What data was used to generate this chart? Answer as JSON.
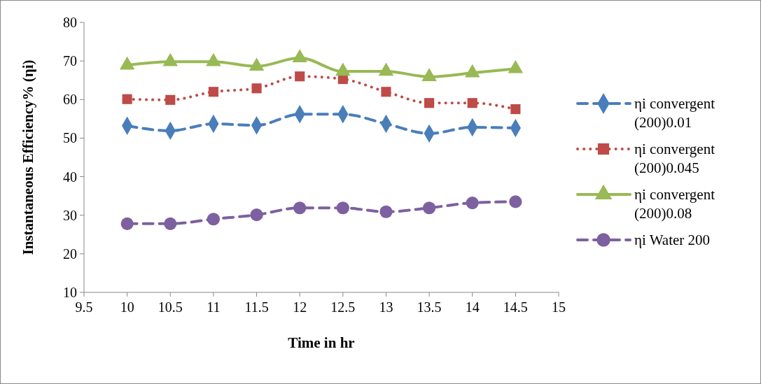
{
  "chart_data": {
    "type": "line",
    "xlabel": "Time in hr",
    "ylabel": "Instantaneous Efficiency%  (ηi)",
    "x": [
      10,
      10.5,
      11,
      11.5,
      12,
      12.5,
      13,
      13.5,
      14,
      14.5
    ],
    "xlim": [
      9.5,
      15
    ],
    "xticks": [
      9.5,
      10,
      10.5,
      11,
      11.5,
      12,
      12.5,
      13,
      13.5,
      14,
      14.5,
      15
    ],
    "ylim": [
      10,
      80
    ],
    "yticks": [
      10,
      20,
      30,
      40,
      50,
      60,
      70,
      80
    ],
    "grid": false,
    "legend": "right",
    "series": [
      {
        "name": "ηi convergent (200)0.01",
        "color": "#4a7ebb",
        "marker": "diamond",
        "line_style": "dashed",
        "values": [
          53.2,
          51.9,
          53.7,
          53.3,
          56.2,
          56.2,
          53.7,
          51.2,
          52.8,
          52.6
        ]
      },
      {
        "name": "ηi convergent (200)0.045",
        "color": "#be4b48",
        "marker": "square",
        "line_style": "dotted",
        "values": [
          60.1,
          59.9,
          62.0,
          62.9,
          66.0,
          65.3,
          62.0,
          59.1,
          59.1,
          57.5
        ]
      },
      {
        "name": "ηi convergent (200)0.08",
        "color": "#98b954",
        "marker": "triangle",
        "line_style": "solid",
        "values": [
          68.9,
          69.8,
          69.8,
          68.6,
          70.8,
          67.3,
          67.3,
          65.9,
          66.9,
          68.0
        ]
      },
      {
        "name": "ηi Water 200",
        "color": "#7d60a0",
        "marker": "circle",
        "line_style": "dashed",
        "values": [
          27.8,
          27.8,
          29.0,
          30.1,
          31.9,
          31.9,
          30.9,
          31.9,
          33.2,
          33.5
        ]
      }
    ]
  }
}
